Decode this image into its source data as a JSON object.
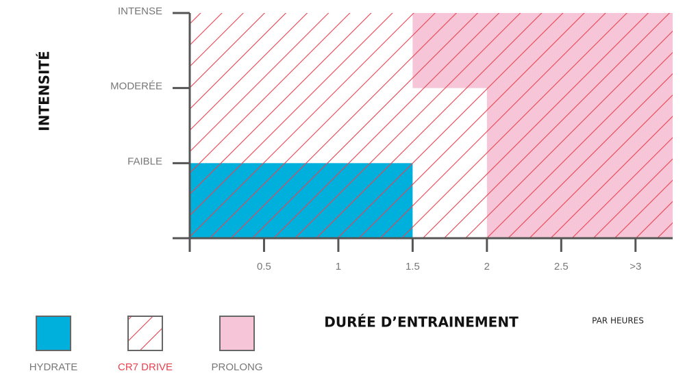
{
  "chart_data": {
    "type": "region",
    "ylabel": "INTENSITÉ",
    "xlabel": "DURÉE D’ENTRAINEMENT",
    "xunit": "PAR HEURES",
    "xlim": [
      0,
      3.25
    ],
    "ylim": [
      0,
      3
    ],
    "xticks": [
      0.5,
      1,
      1.5,
      2,
      2.5,
      {
        "value": 3,
        "label": ">3"
      }
    ],
    "yticks": [
      {
        "value": 1,
        "label": "FAIBLE"
      },
      {
        "value": 2,
        "label": "MODERÉE"
      },
      {
        "value": 3,
        "label": "INTENSE"
      }
    ],
    "regions": [
      {
        "name": "HYDRATE",
        "color": "#00b0dc",
        "fill": "solid",
        "rects": [
          {
            "x": [
              0,
              1.5
            ],
            "y": [
              0,
              1
            ]
          }
        ]
      },
      {
        "name": "CR7 DRIVE",
        "color": "#e8424f",
        "fill": "hatch",
        "rects": [
          {
            "x": [
              0,
              3.25
            ],
            "y": [
              0,
              3
            ]
          }
        ]
      },
      {
        "name": "PROLONG",
        "color": "#f6c6d8",
        "fill": "solid",
        "rects": [
          {
            "x": [
              1.5,
              3.25
            ],
            "y": [
              2,
              3
            ]
          },
          {
            "x": [
              2,
              3.25
            ],
            "y": [
              0,
              3
            ]
          }
        ]
      }
    ]
  }
}
